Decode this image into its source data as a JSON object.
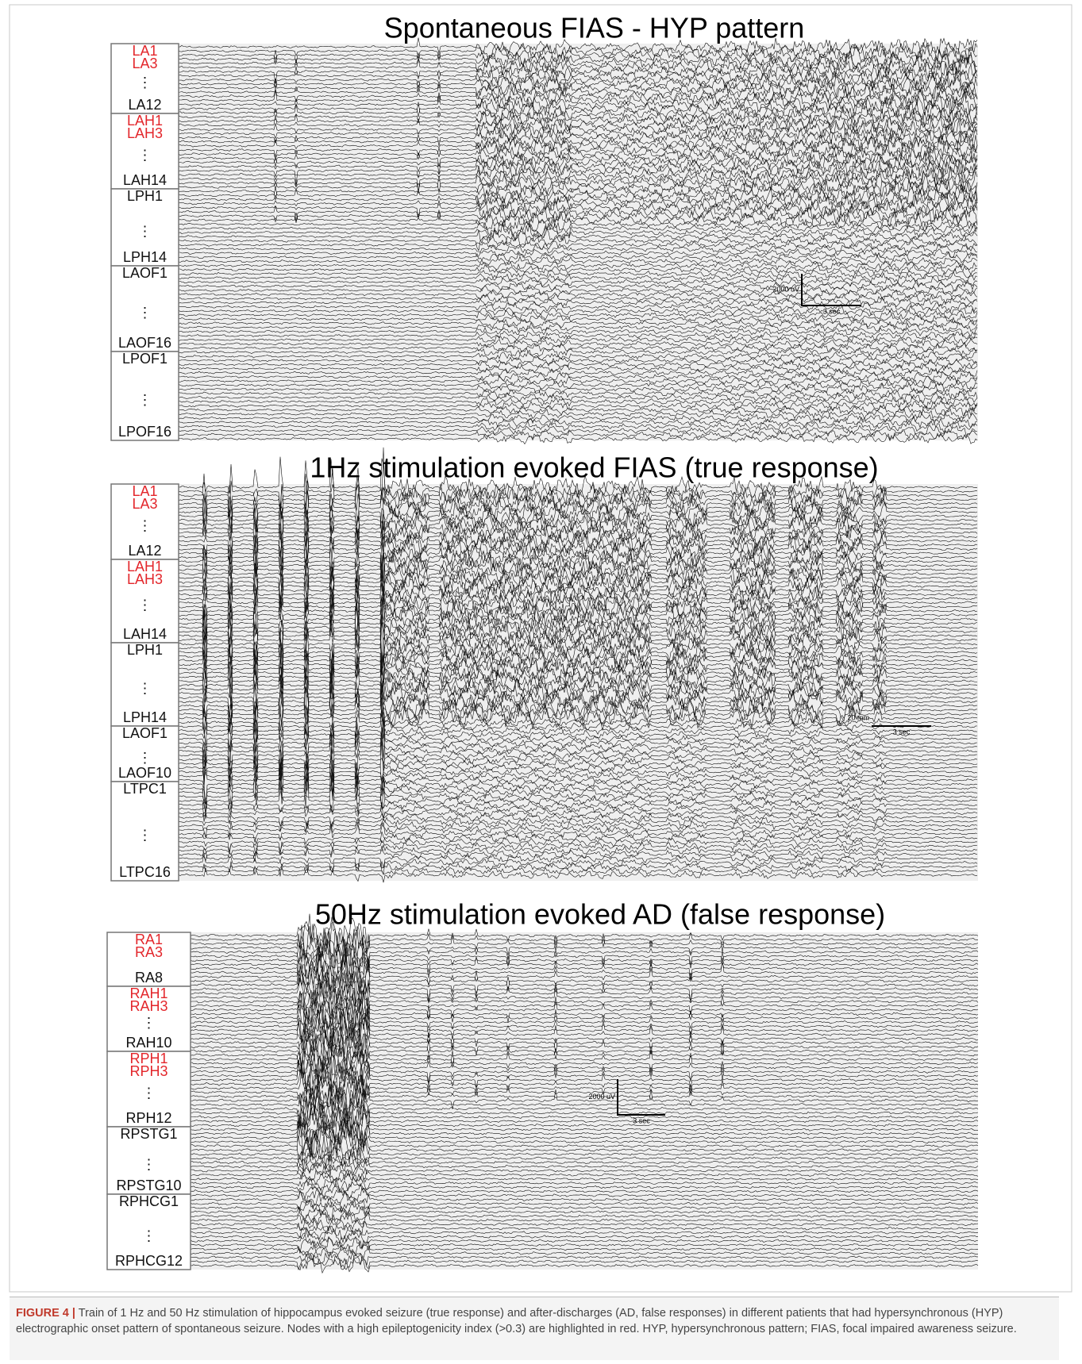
{
  "highlight_color": "#e3262b",
  "panels": [
    {
      "title": "Spontaneous FIAS - HYP pattern",
      "groups": [
        {
          "top": [
            {
              "text": "LA1",
              "highlighted": true
            },
            {
              "text": "LA3",
              "highlighted": true
            }
          ],
          "dots": "⋮",
          "bottom": [
            {
              "text": "LA12",
              "highlighted": false
            }
          ]
        },
        {
          "top": [
            {
              "text": "LAH1",
              "highlighted": true
            },
            {
              "text": "LAH3",
              "highlighted": true
            }
          ],
          "dots": "⋮",
          "bottom": [
            {
              "text": "LAH14",
              "highlighted": false
            }
          ]
        },
        {
          "top": [
            {
              "text": "LPH1",
              "highlighted": false
            }
          ],
          "dots": "⋮",
          "bottom": [
            {
              "text": "LPH14",
              "highlighted": false
            }
          ]
        },
        {
          "top": [
            {
              "text": "LAOF1",
              "highlighted": false
            }
          ],
          "dots": "⋮",
          "bottom": [
            {
              "text": "LAOF16",
              "highlighted": false
            }
          ]
        },
        {
          "top": [
            {
              "text": "LPOF1",
              "highlighted": false
            }
          ],
          "dots": "⋮",
          "bottom": [
            {
              "text": "LPOF16",
              "highlighted": false
            }
          ]
        }
      ],
      "scale": {
        "amplitude": "2000 uV",
        "time": "3 sec"
      }
    },
    {
      "title": "1Hz stimulation evoked FIAS (true response)",
      "groups": [
        {
          "top": [
            {
              "text": "LA1",
              "highlighted": true
            },
            {
              "text": "LA3",
              "highlighted": true
            }
          ],
          "dots": "⋮",
          "bottom": [
            {
              "text": "LA12",
              "highlighted": false
            }
          ]
        },
        {
          "top": [
            {
              "text": "LAH1",
              "highlighted": true
            },
            {
              "text": "LAH3",
              "highlighted": true
            }
          ],
          "dots": "⋮",
          "bottom": [
            {
              "text": "LAH14",
              "highlighted": false
            }
          ]
        },
        {
          "top": [
            {
              "text": "LPH1",
              "highlighted": false
            }
          ],
          "dots": "⋮",
          "bottom": [
            {
              "text": "LPH14",
              "highlighted": false
            }
          ]
        },
        {
          "top": [
            {
              "text": "LAOF1",
              "highlighted": false
            }
          ],
          "dots": "⋮",
          "bottom": [
            {
              "text": "LAOF10",
              "highlighted": false
            }
          ]
        },
        {
          "top": [
            {
              "text": "LTPC1",
              "highlighted": false
            }
          ],
          "dots": "⋮",
          "bottom": [
            {
              "text": "LTPC16",
              "highlighted": false
            }
          ]
        }
      ],
      "scale": {
        "amplitude": "20 mm",
        "time": "3 sec"
      }
    },
    {
      "title": "50Hz stimulation evoked AD (false response)",
      "groups": [
        {
          "top": [
            {
              "text": "RA1",
              "highlighted": true
            },
            {
              "text": "RA3",
              "highlighted": true
            }
          ],
          "bottom": [
            {
              "text": "RA8",
              "highlighted": false
            }
          ]
        },
        {
          "top": [
            {
              "text": "RAH1",
              "highlighted": true
            },
            {
              "text": "RAH3",
              "highlighted": true
            }
          ],
          "dots": "⋮",
          "bottom": [
            {
              "text": "RAH10",
              "highlighted": false
            }
          ]
        },
        {
          "top": [
            {
              "text": "RPH1",
              "highlighted": true
            },
            {
              "text": "RPH3",
              "highlighted": true
            }
          ],
          "dots": "⋮",
          "bottom": [
            {
              "text": "RPH12",
              "highlighted": false
            }
          ]
        },
        {
          "top": [
            {
              "text": "RPSTG1",
              "highlighted": false
            }
          ],
          "dots": "⋮",
          "bottom": [
            {
              "text": "RPSTG10",
              "highlighted": false
            }
          ]
        },
        {
          "top": [
            {
              "text": "RPHCG1",
              "highlighted": false
            }
          ],
          "dots": "⋮",
          "bottom": [
            {
              "text": "RPHCG12",
              "highlighted": false
            }
          ]
        }
      ],
      "scale": {
        "amplitude": "2000 uV",
        "time": "3 sec"
      }
    }
  ],
  "caption": {
    "label": "FIGURE 4 |",
    "text": "Train of 1 Hz and 50 Hz stimulation of hippocampus evoked seizure (true response) and after-discharges (AD, false responses) in different patients that had hypersynchronous (HYP) electrographic onset pattern of spontaneous seizure. Nodes with a high epileptogenicity index (>0.3) are highlighted in red. HYP, hypersynchronous pattern; FIAS, focal impaired awareness seizure."
  }
}
